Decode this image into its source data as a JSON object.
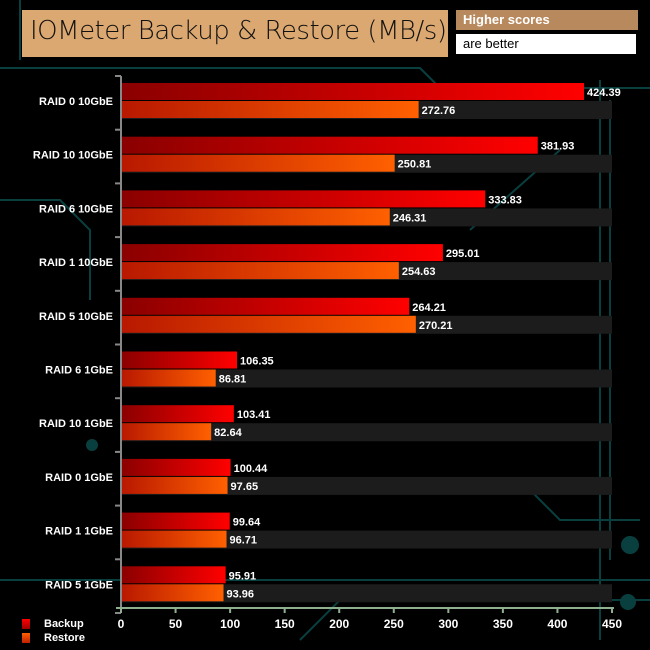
{
  "header": {
    "title": "IOMeter Backup & Restore (MB/s)",
    "note_line1": "Higher scores",
    "note_line2": "are better"
  },
  "chart_data": {
    "type": "bar",
    "orientation": "horizontal",
    "title": "IOMeter Backup & Restore (MB/s)",
    "categories": [
      "RAID 0 10GbE",
      "RAID 10 10GbE",
      "RAID 6 10GbE",
      "RAID 1 10GbE",
      "RAID 5 10GbE",
      "RAID 6 1GbE",
      "RAID 10 1GbE",
      "RAID 0 1GbE",
      "RAID 1 1GbE",
      "RAID 5 1GbE"
    ],
    "series": [
      {
        "name": "Backup",
        "color": "#ff0000",
        "values": [
          424.39,
          381.93,
          333.83,
          295.01,
          264.21,
          106.35,
          103.41,
          100.44,
          99.64,
          95.91
        ]
      },
      {
        "name": "Restore",
        "color": "#ff6000",
        "values": [
          272.76,
          250.81,
          246.31,
          254.63,
          270.21,
          86.81,
          82.64,
          97.65,
          96.71,
          93.96
        ]
      }
    ],
    "xlim": [
      0,
      450
    ],
    "xticks": [
      "0",
      "50",
      "100",
      "150",
      "200",
      "250",
      "300",
      "350",
      "400",
      "450"
    ],
    "legend": "bottom-left",
    "grid": false
  }
}
